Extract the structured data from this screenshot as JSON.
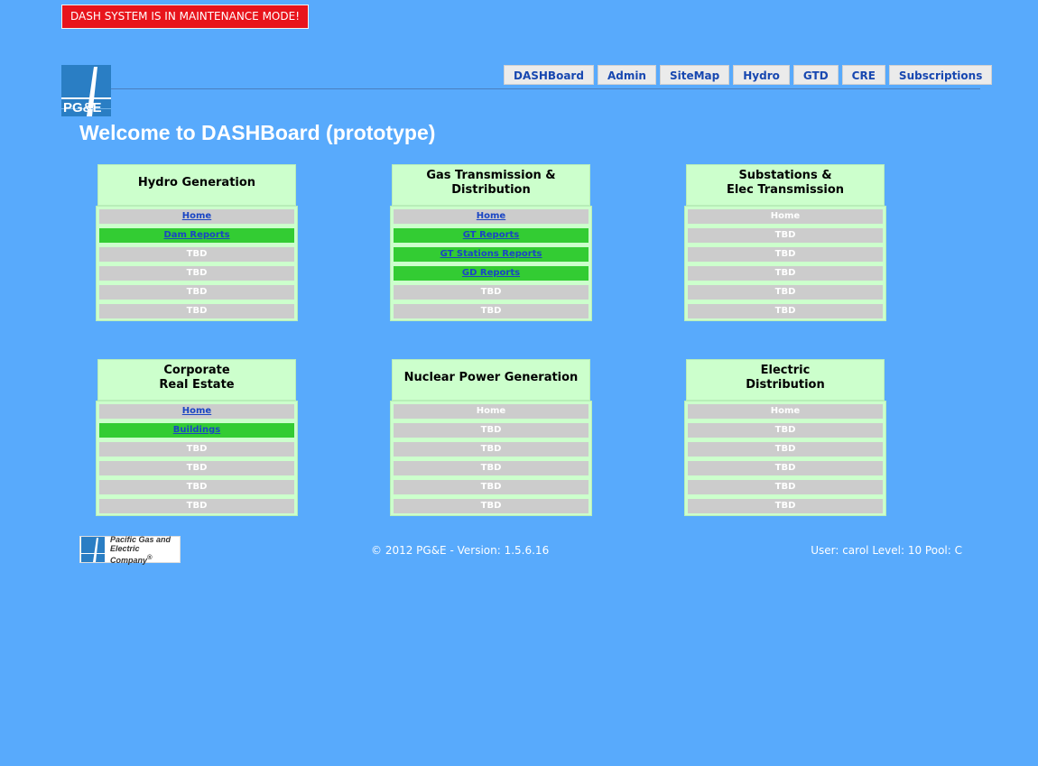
{
  "maintenance_banner": "DASH SYSTEM IS IN MAINTENANCE MODE!",
  "logo": {
    "icon": "pge-logo-icon",
    "text": "PG&E"
  },
  "nav": [
    "DASHBoard",
    "Admin",
    "SiteMap",
    "Hydro",
    "GTD",
    "CRE",
    "Subscriptions"
  ],
  "welcome": "Welcome to DASHBoard (prototype)",
  "panels": [
    {
      "title_lines": [
        "Hydro Generation",
        ""
      ],
      "items": [
        {
          "label": "Home",
          "link": true,
          "green": false
        },
        {
          "label": "Dam Reports",
          "link": true,
          "green": true
        },
        {
          "label": "TBD",
          "link": false,
          "green": false
        },
        {
          "label": "TBD",
          "link": false,
          "green": false
        },
        {
          "label": "TBD",
          "link": false,
          "green": false
        },
        {
          "label": "TBD",
          "link": false,
          "green": false
        }
      ]
    },
    {
      "title_lines": [
        "Gas Transmission &",
        "Distribution"
      ],
      "items": [
        {
          "label": "Home",
          "link": true,
          "green": false
        },
        {
          "label": "GT Reports",
          "link": true,
          "green": true
        },
        {
          "label": "GT Stations Reports",
          "link": true,
          "green": true
        },
        {
          "label": "GD Reports",
          "link": true,
          "green": true
        },
        {
          "label": "TBD",
          "link": false,
          "green": false
        },
        {
          "label": "TBD",
          "link": false,
          "green": false
        }
      ]
    },
    {
      "title_lines": [
        "Substations &",
        "Elec Transmission"
      ],
      "items": [
        {
          "label": "Home",
          "link": false,
          "green": false
        },
        {
          "label": "TBD",
          "link": false,
          "green": false
        },
        {
          "label": "TBD",
          "link": false,
          "green": false
        },
        {
          "label": "TBD",
          "link": false,
          "green": false
        },
        {
          "label": "TBD",
          "link": false,
          "green": false
        },
        {
          "label": "TBD",
          "link": false,
          "green": false
        }
      ]
    },
    {
      "title_lines": [
        "Corporate",
        "Real Estate"
      ],
      "items": [
        {
          "label": "Home",
          "link": true,
          "green": false
        },
        {
          "label": "Buildings",
          "link": true,
          "green": true
        },
        {
          "label": "TBD",
          "link": false,
          "green": false
        },
        {
          "label": "TBD",
          "link": false,
          "green": false
        },
        {
          "label": "TBD",
          "link": false,
          "green": false
        },
        {
          "label": "TBD",
          "link": false,
          "green": false
        }
      ]
    },
    {
      "title_lines": [
        "Nuclear Power Generation",
        ""
      ],
      "items": [
        {
          "label": "Home",
          "link": false,
          "green": false
        },
        {
          "label": "TBD",
          "link": false,
          "green": false
        },
        {
          "label": "TBD",
          "link": false,
          "green": false
        },
        {
          "label": "TBD",
          "link": false,
          "green": false
        },
        {
          "label": "TBD",
          "link": false,
          "green": false
        },
        {
          "label": "TBD",
          "link": false,
          "green": false
        }
      ]
    },
    {
      "title_lines": [
        "Electric",
        "Distribution"
      ],
      "items": [
        {
          "label": "Home",
          "link": false,
          "green": false
        },
        {
          "label": "TBD",
          "link": false,
          "green": false
        },
        {
          "label": "TBD",
          "link": false,
          "green": false
        },
        {
          "label": "TBD",
          "link": false,
          "green": false
        },
        {
          "label": "TBD",
          "link": false,
          "green": false
        },
        {
          "label": "TBD",
          "link": false,
          "green": false
        }
      ]
    }
  ],
  "footer": {
    "logo_icon": "pge-footer-logo-icon",
    "logo_line1": "Pacific Gas and",
    "logo_line2": "Electric Company",
    "logo_mark": "®",
    "copyright": "© 2012 PG&E - Version: 1.5.6.16",
    "user_info": "User: carol Level: 10 Pool: C"
  },
  "colors": {
    "background": "#58aafc",
    "banner": "#e8141b",
    "panel": "#ccffcc",
    "active_item": "#33cc33",
    "inactive_item": "#cccccc",
    "link": "#1a45c4"
  }
}
